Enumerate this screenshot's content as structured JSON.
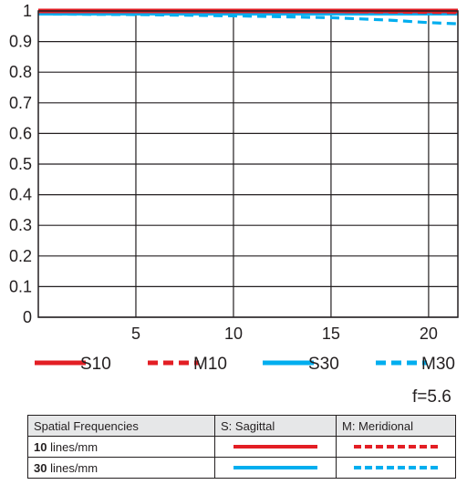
{
  "chart_data": {
    "type": "line",
    "xlim": [
      0,
      21.5
    ],
    "ylim": [
      0,
      1
    ],
    "x_ticks": [
      "5",
      "10",
      "15",
      "20"
    ],
    "y_ticks": [
      "0",
      "0.1",
      "0.2",
      "0.3",
      "0.4",
      "0.5",
      "0.6",
      "0.7",
      "0.8",
      "0.9",
      "1"
    ],
    "grid": true,
    "legend_position": "bottom",
    "series": [
      {
        "name": "S10",
        "color": "#e31e24",
        "style": "solid",
        "points": [
          [
            0,
            1.0
          ],
          [
            5,
            1.0
          ],
          [
            10,
            1.0
          ],
          [
            15,
            1.0
          ],
          [
            20,
            1.0
          ],
          [
            21.5,
            1.0
          ]
        ]
      },
      {
        "name": "M10",
        "color": "#e31e24",
        "style": "dashed",
        "points": [
          [
            0,
            1.0
          ],
          [
            5,
            1.0
          ],
          [
            10,
            1.0
          ],
          [
            15,
            1.0
          ],
          [
            20,
            0.998
          ],
          [
            21.5,
            0.997
          ]
        ]
      },
      {
        "name": "S30",
        "color": "#00aeef",
        "style": "solid",
        "points": [
          [
            0,
            0.99
          ],
          [
            5,
            0.99
          ],
          [
            10,
            0.99
          ],
          [
            15,
            0.99
          ],
          [
            20,
            0.99
          ],
          [
            21.5,
            0.99
          ]
        ]
      },
      {
        "name": "M30",
        "color": "#00aeef",
        "style": "dashed",
        "points": [
          [
            0,
            0.99
          ],
          [
            5,
            0.988
          ],
          [
            10,
            0.984
          ],
          [
            15,
            0.978
          ],
          [
            18,
            0.97
          ],
          [
            20,
            0.962
          ],
          [
            21.5,
            0.958
          ]
        ]
      }
    ]
  },
  "aperture": "f=5.6",
  "table": {
    "headers": [
      "Spatial Frequencies",
      "S: Sagittal",
      "M: Meridional"
    ],
    "rows": [
      {
        "num": "10",
        "unit": " lines/mm",
        "sagittal_color": "#e31e24",
        "meridional_color": "#e31e24"
      },
      {
        "num": "30",
        "unit": " lines/mm",
        "sagittal_color": "#00aeef",
        "meridional_color": "#00aeef"
      }
    ]
  }
}
